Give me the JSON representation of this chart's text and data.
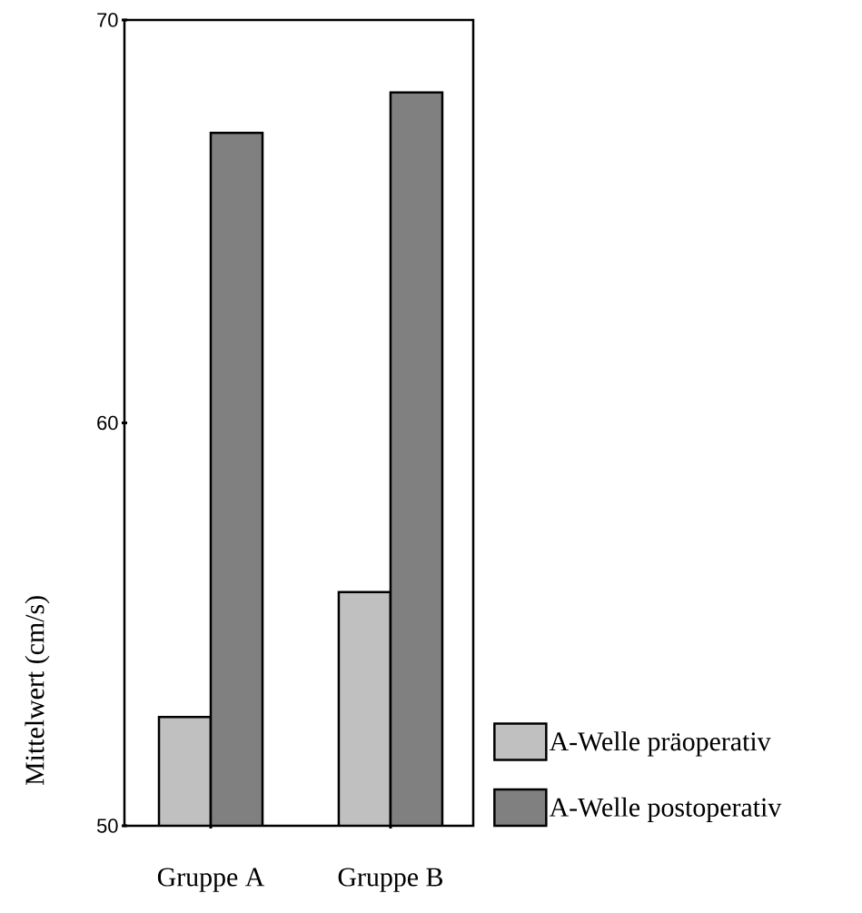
{
  "chart_data": {
    "type": "bar",
    "ylabel": "Mittelwert (cm/s)",
    "categories": [
      "Gruppe A",
      "Gruppe B"
    ],
    "series": [
      {
        "name": "A-Welle präoperativ",
        "color": "#c0c0c0",
        "values": [
          52.7,
          55.8
        ]
      },
      {
        "name": "A-Welle postoperativ",
        "color": "#808080",
        "values": [
          67.2,
          68.2
        ]
      }
    ],
    "ylim": [
      50,
      70
    ],
    "yticks": [
      50,
      60,
      70
    ],
    "legend": "bottom right"
  }
}
